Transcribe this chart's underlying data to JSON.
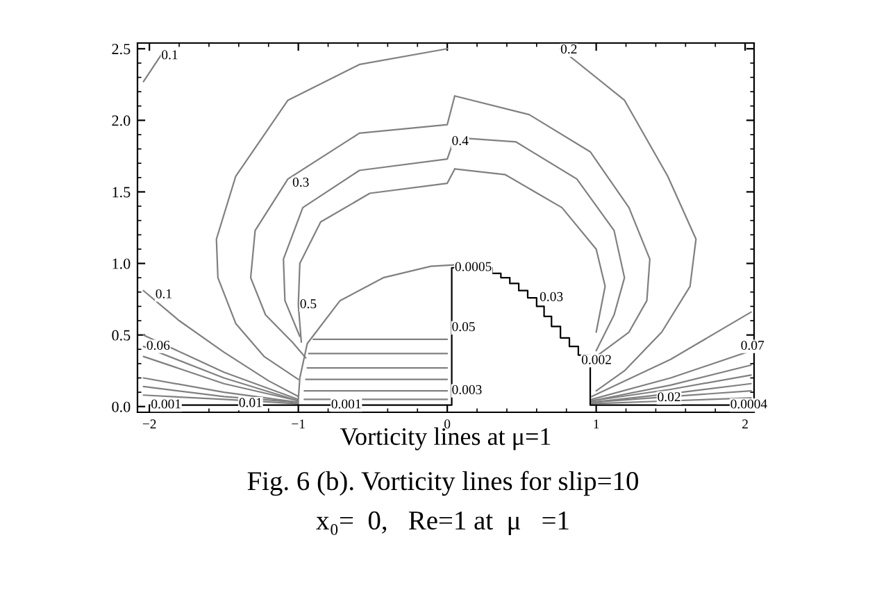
{
  "chart_data": {
    "type": "line",
    "xlabel": "Vorticity lines at μ=1",
    "xlim": [
      -2.08,
      2.06
    ],
    "ylim": [
      -0.04,
      2.54
    ],
    "xticks": [
      {
        "value": -2,
        "label": "−2"
      },
      {
        "value": -1,
        "label": "−1"
      },
      0,
      1,
      2
    ],
    "yticks": [
      {
        "value": 0,
        "label": "0.0"
      },
      {
        "value": 0.5,
        "label": "0.5"
      },
      {
        "value": 1,
        "label": "1.0"
      },
      {
        "value": 1.5,
        "label": "1.5"
      },
      {
        "value": 2,
        "label": "2.0"
      },
      {
        "value": 2.5,
        "label": "2.5"
      }
    ],
    "grid": false,
    "series": [
      {
        "color": "#808080",
        "x": [
          0,
          -0.59,
          -1.07,
          -1.42,
          -1.55,
          -1.54,
          -1.42,
          -1.23,
          -1.0
        ],
        "values": [
          2.5,
          2.39,
          2.14,
          1.61,
          1.17,
          0.9,
          0.58,
          0.35,
          0.19
        ]
      },
      {
        "color": "#808080",
        "x": [
          0.76,
          1.19,
          1.48,
          1.67,
          1.63,
          1.44,
          1.19,
          1.0
        ],
        "values": [
          2.5,
          2.14,
          1.61,
          1.17,
          0.84,
          0.52,
          0.25,
          0.11
        ]
      },
      {
        "color": "#808080",
        "x": [
          -0.95,
          -1.04,
          -1.22,
          -1.32,
          -1.29,
          -1.07,
          -0.59,
          0,
          0.05
        ],
        "values": [
          0.34,
          0.45,
          0.64,
          0.9,
          1.23,
          1.59,
          1.91,
          1.97,
          2.17
        ]
      },
      {
        "color": "#808080",
        "x": [
          0.05,
          0.55,
          0.96,
          1.22,
          1.36,
          1.34,
          1.22,
          1.0
        ],
        "values": [
          2.17,
          2.04,
          1.78,
          1.39,
          1.03,
          0.74,
          0.52,
          0.35
        ]
      },
      {
        "color": "#808080",
        "x": [
          -0.99,
          -1.09,
          -1.1,
          -0.97,
          -0.59,
          0,
          0.05
        ],
        "values": [
          0.49,
          0.74,
          1.03,
          1.39,
          1.65,
          1.73,
          1.88
        ]
      },
      {
        "color": "#808080",
        "x": [
          0.05,
          0.46,
          0.87,
          1.12,
          1.19,
          1.12,
          1.0
        ],
        "values": [
          1.88,
          1.85,
          1.59,
          1.23,
          0.9,
          0.64,
          0.39
        ]
      },
      {
        "color": "#808080",
        "x": [
          -0.98,
          -1.0,
          -0.99,
          -0.85,
          -0.52,
          0,
          0.05
        ],
        "values": [
          0.45,
          0.71,
          1.0,
          1.29,
          1.49,
          1.56,
          1.66
        ]
      },
      {
        "color": "#808080",
        "x": [
          0.05,
          0.39,
          0.77,
          1.0,
          1.06,
          1.0
        ],
        "values": [
          1.66,
          1.62,
          1.39,
          1.1,
          0.84,
          0.52
        ]
      },
      {
        "color": "#808080",
        "x": [
          -1.0,
          -0.99,
          -0.94,
          -0.72,
          -0.43,
          -0.11,
          0.05
        ],
        "values": [
          0.05,
          0.2,
          0.44,
          0.74,
          0.9,
          0.98,
          0.99
        ]
      },
      {
        "color": "#808080",
        "x": [
          -0.9,
          0.0
        ],
        "values": [
          0.47,
          0.47
        ]
      },
      {
        "color": "#808080",
        "x": [
          -0.93,
          0.0
        ],
        "values": [
          0.37,
          0.37
        ]
      },
      {
        "color": "#808080",
        "x": [
          -0.94,
          0.0
        ],
        "values": [
          0.27,
          0.27
        ]
      },
      {
        "color": "#808080",
        "x": [
          -0.95,
          0.0
        ],
        "values": [
          0.19,
          0.19
        ]
      },
      {
        "color": "#808080",
        "x": [
          -0.96,
          0.0
        ],
        "values": [
          0.11,
          0.11
        ]
      },
      {
        "color": "#808080",
        "x": [
          -0.96,
          0.0
        ],
        "values": [
          0.05,
          0.05
        ]
      },
      {
        "color": "#808080",
        "x": [
          -2.04,
          -1.9
        ],
        "values": [
          2.27,
          2.49
        ]
      },
      {
        "color": "#808080",
        "x": [
          -2.04,
          -1.8,
          -1.5,
          -1.2,
          -1.0
        ],
        "values": [
          0.81,
          0.6,
          0.38,
          0.18,
          0.07
        ]
      },
      {
        "color": "#808080",
        "x": [
          -2.04,
          -1.5,
          -1.0
        ],
        "values": [
          0.5,
          0.24,
          0.05
        ]
      },
      {
        "color": "#808080",
        "x": [
          -2.04,
          -1.5,
          -1.0
        ],
        "values": [
          0.42,
          0.2,
          0.04
        ]
      },
      {
        "color": "#808080",
        "x": [
          -2.04,
          -1.5,
          -1.0
        ],
        "values": [
          0.35,
          0.16,
          0.04
        ]
      },
      {
        "color": "#808080",
        "x": [
          -2.04,
          -1.5,
          -1.0
        ],
        "values": [
          0.2,
          0.1,
          0.03
        ]
      },
      {
        "color": "#808080",
        "x": [
          -2.04,
          -1.5,
          -1.0
        ],
        "values": [
          0.14,
          0.07,
          0.03
        ]
      },
      {
        "color": "#808080",
        "x": [
          -2.04,
          -1.5,
          -1.0
        ],
        "values": [
          0.08,
          0.05,
          0.02
        ]
      },
      {
        "color": "#808080",
        "x": [
          0.97,
          1.5,
          2.04
        ],
        "values": [
          0.07,
          0.33,
          0.66
        ]
      },
      {
        "color": "#808080",
        "x": [
          0.97,
          1.5,
          2.04
        ],
        "values": [
          0.05,
          0.2,
          0.39
        ]
      },
      {
        "color": "#808080",
        "x": [
          0.97,
          1.5,
          2.04
        ],
        "values": [
          0.04,
          0.15,
          0.29
        ]
      },
      {
        "color": "#808080",
        "x": [
          0.97,
          1.5,
          2.04
        ],
        "values": [
          0.04,
          0.12,
          0.22
        ]
      },
      {
        "color": "#808080",
        "x": [
          0.97,
          1.5,
          2.04
        ],
        "values": [
          0.03,
          0.09,
          0.16
        ]
      },
      {
        "color": "#808080",
        "x": [
          0.97,
          1.5,
          2.04
        ],
        "values": [
          0.03,
          0.07,
          0.11
        ]
      },
      {
        "color": "#808080",
        "x": [
          0.97,
          1.5,
          2.04
        ],
        "values": [
          0.02,
          0.04,
          0.06
        ]
      },
      {
        "color": "#000000",
        "x": [
          -2.0,
          0.03,
          0.03,
          0.3,
          0.3,
          0.36,
          0.36,
          0.42,
          0.42,
          0.48,
          0.48,
          0.54,
          0.54,
          0.6,
          0.6,
          0.65,
          0.65,
          0.7,
          0.7,
          0.76,
          0.76,
          0.82,
          0.82,
          0.88,
          0.88,
          0.96,
          0.96,
          2.0
        ],
        "values": [
          0.01,
          0.01,
          0.97,
          0.97,
          0.93,
          0.93,
          0.9,
          0.9,
          0.86,
          0.86,
          0.81,
          0.81,
          0.76,
          0.76,
          0.7,
          0.7,
          0.63,
          0.63,
          0.56,
          0.56,
          0.48,
          0.48,
          0.42,
          0.42,
          0.36,
          0.36,
          0.01,
          0.01
        ]
      }
    ],
    "annotations": [
      {
        "text": "0.1",
        "x": -1.92,
        "y": 2.45
      },
      {
        "text": "0.2",
        "x": 0.76,
        "y": 2.49
      },
      {
        "text": "0.4",
        "x": 0.03,
        "y": 1.85
      },
      {
        "text": "0.3",
        "x": -1.04,
        "y": 1.56
      },
      {
        "text": "0.0005",
        "x": 0.05,
        "y": 0.97
      },
      {
        "text": "0.1",
        "x": -1.96,
        "y": 0.78
      },
      {
        "text": "0.5",
        "x": -0.99,
        "y": 0.71
      },
      {
        "text": "0.05",
        "x": 0.03,
        "y": 0.55
      },
      {
        "text": "0.06",
        "x": -2.02,
        "y": 0.42
      },
      {
        "text": "0.003",
        "x": 0.03,
        "y": 0.11
      },
      {
        "text": "0.001",
        "x": -1.99,
        "y": 0.01
      },
      {
        "text": "0.01",
        "x": -1.4,
        "y": 0.02
      },
      {
        "text": "0.001",
        "x": -0.78,
        "y": 0.01
      },
      {
        "text": "0.03",
        "x": 0.62,
        "y": 0.76
      },
      {
        "text": "0.002",
        "x": 0.9,
        "y": 0.32
      },
      {
        "text": "0.07",
        "x": 1.97,
        "y": 0.42
      },
      {
        "text": "0.02",
        "x": 1.41,
        "y": 0.06
      },
      {
        "text": "0.0004",
        "x": 1.9,
        "y": 0.01
      },
      "Fig. 6 (b). Vorticity lines for slip=10",
      "x₀=  0,   Re=1 at  μ   =1"
    ]
  }
}
